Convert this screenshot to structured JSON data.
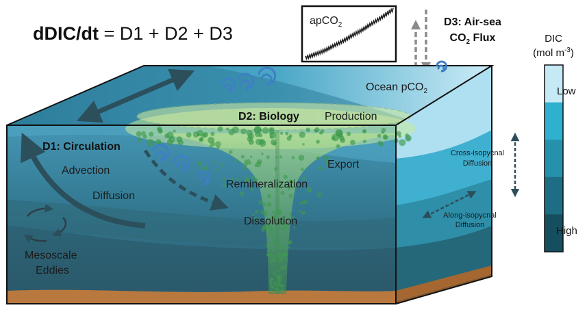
{
  "equation": {
    "lhs": "dDIC/dt",
    "rhs": " = D1 + D2 + D3"
  },
  "atmosphere": {
    "inset_label": "apCO",
    "inset_label_sub": "2",
    "flux_label_line1": "D3: Air-sea",
    "flux_label_line2": "CO",
    "flux_label_line2_sub": "2",
    "flux_label_line2_rest": " Flux"
  },
  "ocean_surface": {
    "pco2_label": "Ocean pCO",
    "pco2_label_sub": "2"
  },
  "biology": {
    "title": "D2: Biology",
    "production": "Production",
    "export": "Export",
    "remineralization": "Remineralization",
    "dissolution": "Dissolution"
  },
  "circulation": {
    "title": "D1: Circulation",
    "advection": "Advection",
    "diffusion": "Diffusion",
    "eddies_line1": "Mesoscale",
    "eddies_line2": "Eddies"
  },
  "side_face": {
    "cross_line1": "Cross-isopycnal",
    "cross_line2": "Diffusion",
    "along_line1": "Along-isopycnal",
    "along_line2": "Diffusion"
  },
  "legend": {
    "title": "DIC",
    "unit": "(mol m",
    "unit_sup": "-3",
    "unit_end": ")",
    "low": "Low",
    "high": "High",
    "colors": [
      "#c6e9f6",
      "#2fb0cf",
      "#2691ad",
      "#1d6e84",
      "#154e5e"
    ]
  },
  "colors": {
    "front_top": "#3f8fae",
    "front_mid": "#346e82",
    "front_deep": "#2e5e70",
    "side_light": "#aee0f1",
    "side_mid": "#3fb0cf",
    "side_deep": "#2a7f95",
    "sediment": "#b9783e",
    "biology_green": "#8fc47a",
    "swirl": "#3f7fc4"
  }
}
